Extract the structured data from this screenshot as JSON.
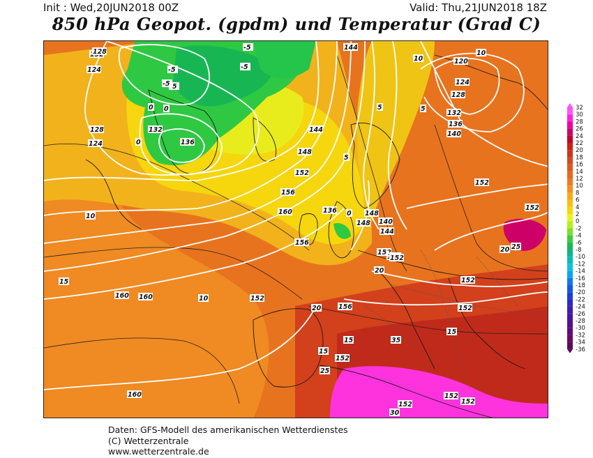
{
  "header": {
    "init": "Init : Wed,20JUN2018 00Z",
    "valid": "Valid: Thu,21JUN2018 18Z",
    "title": "850 hPa Geopot. (gpdm) und Temperatur (Grad C)"
  },
  "legend": {
    "labels": [
      "32",
      "30",
      "28",
      "26",
      "24",
      "22",
      "20",
      "18",
      "16",
      "14",
      "12",
      "10",
      "8",
      "6",
      "4",
      "2",
      "0",
      "-2",
      "-4",
      "-6",
      "-8",
      "-10",
      "-12",
      "-14",
      "-16",
      "-18",
      "-20",
      "-22",
      "-24",
      "-26",
      "-28",
      "-30",
      "-32",
      "-34",
      "-36"
    ],
    "colors": [
      "#ff55ff",
      "#ff22dd",
      "#ee0099",
      "#cc0066",
      "#c0002a",
      "#d0200f",
      "#c8381c",
      "#d24a1e",
      "#dc5a20",
      "#e66a22",
      "#f07a24",
      "#f5901c",
      "#f8a818",
      "#f8c010",
      "#f2d808",
      "#eef01c",
      "#b8ee22",
      "#7ee028",
      "#3ccc3c",
      "#18b95a",
      "#10b48a",
      "#0cbab6",
      "#12c0e0",
      "#0ca4f2",
      "#1078ee",
      "#1658e4",
      "#1c40d4",
      "#2c2ac4",
      "#3c1eb0",
      "#4a16a0",
      "#580e8e",
      "#62087a",
      "#6a0668",
      "#5a0858"
    ]
  },
  "map": {
    "geopotential_labels": [
      "132",
      "128",
      "124",
      "128",
      "124",
      "132",
      "136",
      "144",
      "148",
      "152",
      "156",
      "160",
      "156",
      "160",
      "160",
      "152",
      "136",
      "140",
      "144",
      "148",
      "152",
      "148",
      "152",
      "144",
      "120",
      "124",
      "128",
      "132",
      "136",
      "140",
      "152",
      "152",
      "152",
      "152",
      "156",
      "152",
      "152",
      "152",
      "152",
      "152",
      "160"
    ],
    "temperature_labels": [
      "-5",
      "-5",
      "-5",
      "-5",
      "-5",
      "0",
      "0",
      "0",
      "5",
      "5",
      "10",
      "10",
      "10",
      "15",
      "15",
      "15",
      "20",
      "20",
      "25",
      "30",
      "35",
      "10",
      "5",
      "0",
      "15",
      "20",
      "25"
    ]
  },
  "footer": {
    "line1": "Daten: GFS-Modell des amerikanischen Wetterdienstes",
    "line2": "(C) Wetterzentrale",
    "line3": "www.wetterzentrale.de"
  }
}
